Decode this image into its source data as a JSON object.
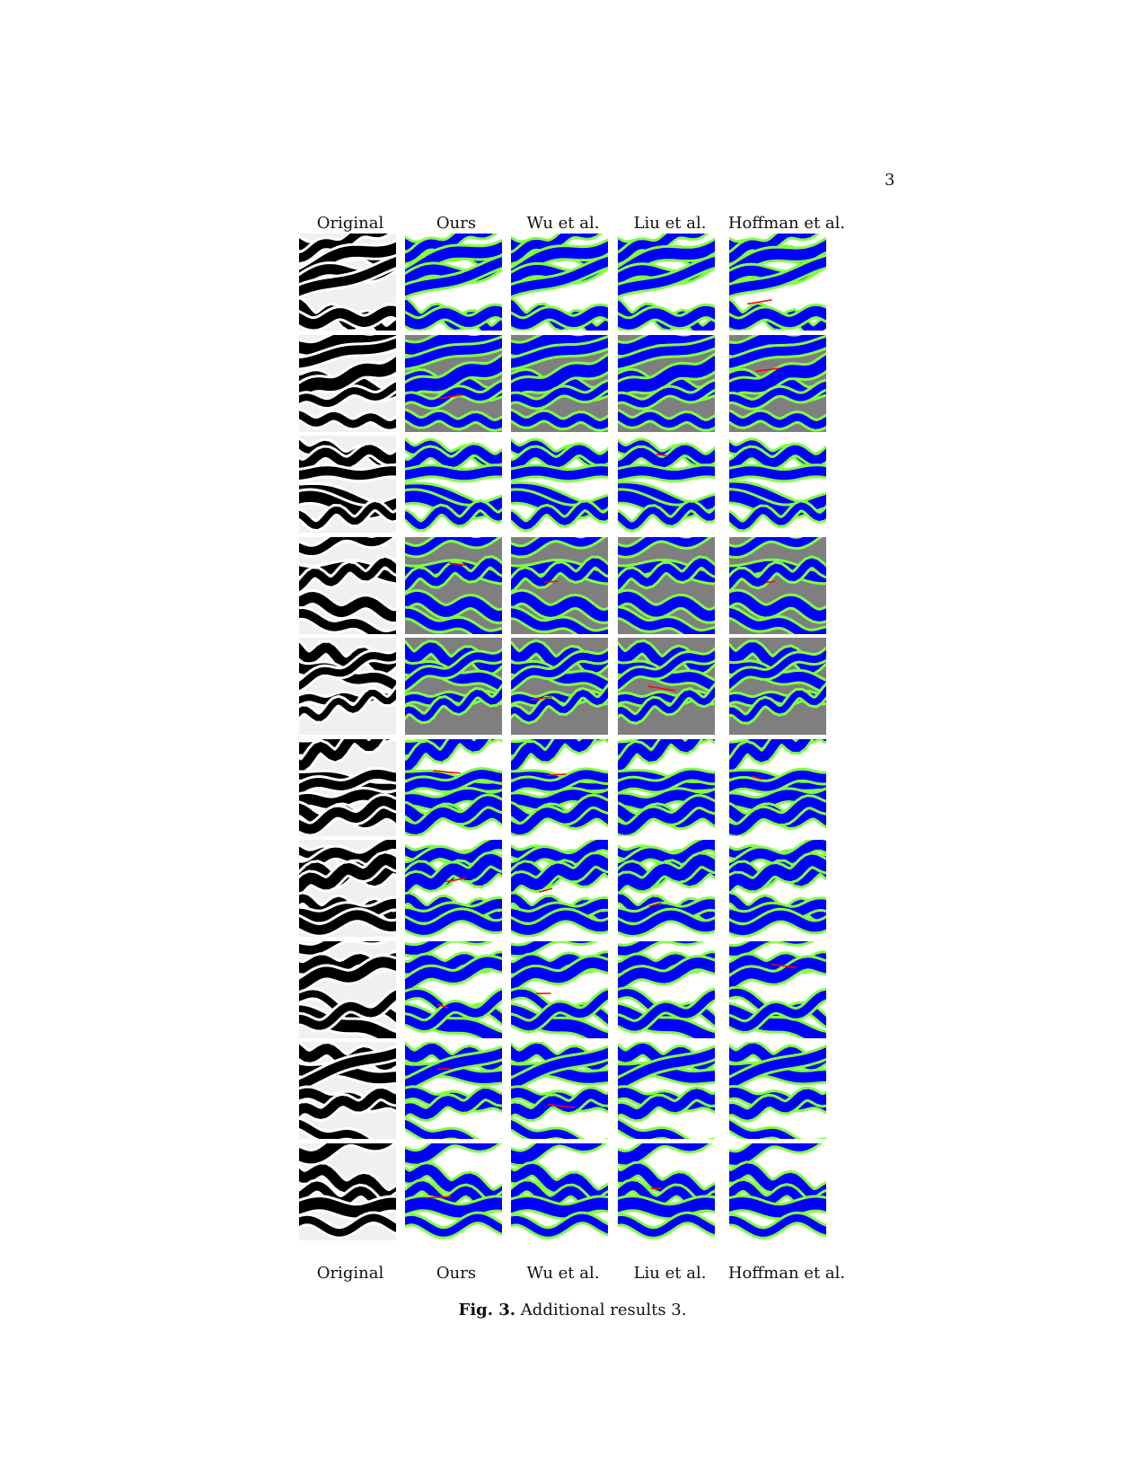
{
  "page_number": "3",
  "columns": [
    "Original",
    "Ours",
    "Wu et al.",
    "Liu et al.",
    "Hoffman et al."
  ],
  "rows": 10,
  "colors": {
    "background_gray": "#7f7f7f",
    "white_matter": "#0000ff",
    "gray_matter": "#80ff40",
    "boundary_error": "#ff0000",
    "original_dark": "#000000",
    "original_light": "#f0f0f0"
  },
  "caption": {
    "label": "Fig. 3.",
    "text": "Additional results 3."
  }
}
